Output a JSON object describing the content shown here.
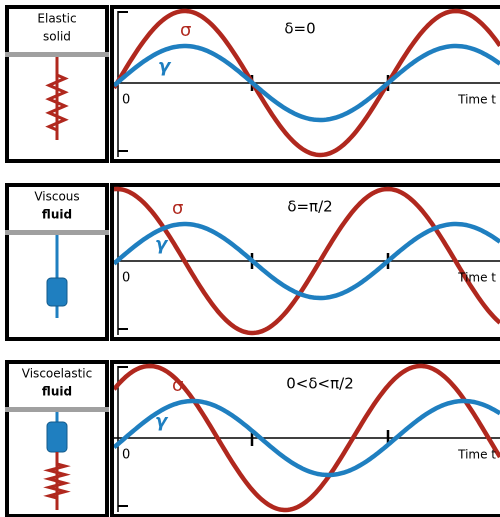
{
  "panels": [
    {
      "label_lines": [
        "Elastic",
        "solid"
      ],
      "sigma": "σ",
      "gamma": "γ",
      "phase": "δ=0",
      "origin": "0",
      "time_axis": "Time t"
    },
    {
      "label_lines": [
        "Viscous",
        "fluid"
      ],
      "sigma": "σ",
      "gamma": "γ",
      "phase": "δ=π/2",
      "origin": "0",
      "time_axis": "Time t"
    },
    {
      "label_lines": [
        "Viscoelastic",
        "fluid"
      ],
      "sigma": "σ",
      "gamma": "γ",
      "phase": "0<δ<π/2",
      "origin": "0",
      "time_axis": "Time t"
    }
  ]
}
